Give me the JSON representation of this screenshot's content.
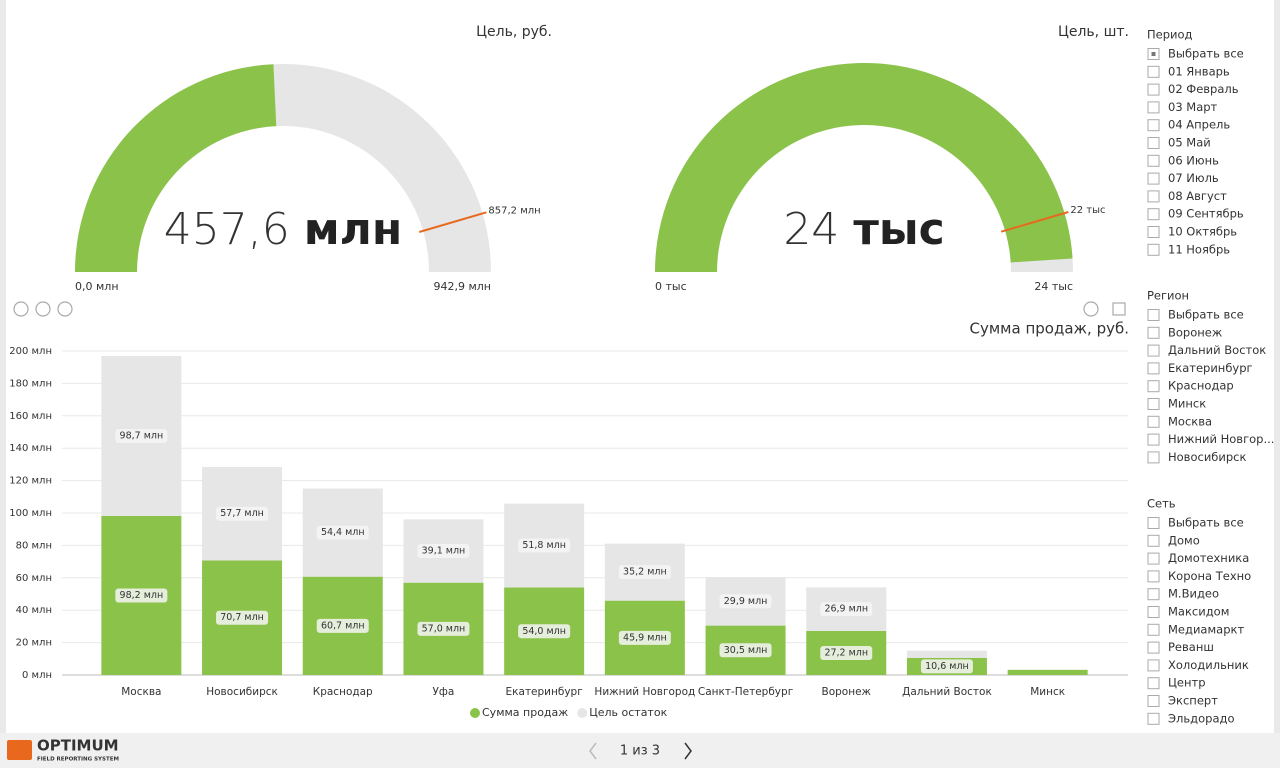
{
  "chart_data": [
    {
      "type": "gauge",
      "title": "Цель, руб.",
      "value": {
        "value": 457.6,
        "label": "457,6",
        "unit": "млн"
      },
      "min": {
        "value": 0,
        "label": "0,0 млн"
      },
      "max": {
        "value": 942.9,
        "label": "942,9 млн"
      },
      "target": {
        "value": 857.2,
        "label": "857,2 млн"
      },
      "color": "#8bc34a",
      "track_color": "#e6e6e6",
      "target_color": "#e8691d"
    },
    {
      "type": "gauge",
      "title": "Цель, шт.",
      "value": {
        "value": 23.7,
        "label": "24",
        "unit": "тыс"
      },
      "min": {
        "value": 0,
        "label": "0 тыс"
      },
      "max": {
        "value": 24.2,
        "label": "24 тыс"
      },
      "target": {
        "value": 22,
        "label": "22 тыс"
      },
      "color": "#8bc34a",
      "track_color": "#e6e6e6",
      "target_color": "#e8691d"
    },
    {
      "type": "stacked_bar",
      "title": "Сумма продаж, руб.",
      "categories": [
        "Москва",
        "Новосибирск",
        "Краснодар",
        "Уфа",
        "Екатеринбург",
        "Нижний Новгород",
        "Санкт-Петербург",
        "Воронеж",
        "Дальний Восток",
        "Минск"
      ],
      "series": [
        {
          "name": "Сумма продаж",
          "color": "#8bc34a",
          "values": [
            98.2,
            70.7,
            60.7,
            57.0,
            54.0,
            45.9,
            30.5,
            27.2,
            10.6,
            3.2
          ],
          "value_labels": [
            "98,2 млн",
            "70,7 млн",
            "60,7 млн",
            "57,0 млн",
            "54,0 млн",
            "45,9 млн",
            "30,5 млн",
            "27,2 млн",
            "10,6 млн",
            null
          ]
        },
        {
          "name": "Цель остаток",
          "color": "#e6e6e6",
          "values": [
            98.7,
            57.7,
            54.4,
            39.1,
            51.8,
            35.2,
            29.9,
            26.9,
            4.4,
            null
          ],
          "value_labels": [
            "98,7 млн",
            "57,7 млн",
            "54,4 млн",
            "39,1 млн",
            "51,8 млн",
            "35,2 млн",
            "29,9 млн",
            "26,9 млн",
            null,
            null
          ]
        }
      ],
      "ylim": [
        0,
        200
      ],
      "yticks": [
        {
          "value": 0,
          "label": "0 млн"
        },
        {
          "value": 20,
          "label": "20 млн"
        },
        {
          "value": 40,
          "label": "40 млн"
        },
        {
          "value": 60,
          "label": "60 млн"
        },
        {
          "value": 80,
          "label": "80 млн"
        },
        {
          "value": 100,
          "label": "100 млн"
        },
        {
          "value": 120,
          "label": "120 млн"
        },
        {
          "value": 140,
          "label": "140 млн"
        },
        {
          "value": 160,
          "label": "160 млн"
        },
        {
          "value": 180,
          "label": "180 млн"
        },
        {
          "value": 200,
          "label": "200 млн"
        }
      ],
      "grid": true,
      "legend": "bottom"
    }
  ],
  "slicers": [
    {
      "title": "Период",
      "items": [
        "Выбрать все",
        "01 Январь",
        "02 Февраль",
        "03 Март",
        "04 Апрель",
        "05 Май",
        "06 Июнь",
        "07 Июль",
        "08 Август",
        "09 Сентябрь",
        "10 Октябрь",
        "11 Ноябрь"
      ]
    },
    {
      "title": "Регион",
      "items": [
        "Выбрать все",
        "Воронеж",
        "Дальний Восток",
        "Екатеринбург",
        "Краснодар",
        "Минск",
        "Москва",
        "Нижний Новгор...",
        "Новосибирск"
      ]
    },
    {
      "title": "Сеть",
      "items": [
        "Выбрать все",
        "Домо",
        "Домотехника",
        "Корона Техно",
        "М.Видео",
        "Максидом",
        "Медиамаркт",
        "Реванш",
        "Холодильник",
        "Центр",
        "Эксперт",
        "Эльдорадо"
      ]
    }
  ],
  "footer": {
    "brand": "OPTIMUM",
    "tagline": "FIELD REPORTING SYSTEM",
    "pager": "1 из 3"
  }
}
